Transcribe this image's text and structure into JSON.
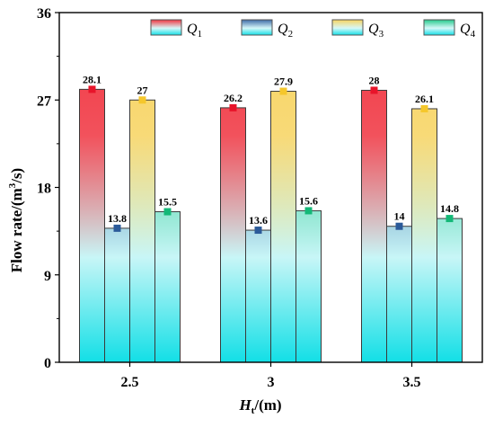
{
  "chart_data": {
    "type": "bar",
    "title": "",
    "xlabel": "Ht/(m)",
    "xlabel_main": "H",
    "xlabel_sub": "t",
    "xlabel_rest": "/(m)",
    "ylabel": "Flow rate/(m3/s)",
    "ylabel_main": "Flow rate/(m",
    "ylabel_sup": "3",
    "ylabel_rest": "/s)",
    "categories": [
      "2.5",
      "3",
      "3.5"
    ],
    "ylim": [
      0,
      36
    ],
    "yticks": [
      0,
      9,
      18,
      27,
      36
    ],
    "ytick_labels": [
      "0",
      "9",
      "18",
      "27",
      "36"
    ],
    "grid": false,
    "legend_position": "top",
    "series": [
      {
        "name": "Q1",
        "name_main": "Q",
        "name_sub": "1",
        "values": [
          28.1,
          26.2,
          28
        ],
        "value_labels": [
          "28.1",
          "26.2",
          "28"
        ],
        "top_color": "#f0333f",
        "bottom_color": "#12dfe6",
        "marker_color": "#e8142a"
      },
      {
        "name": "Q2",
        "name_main": "Q",
        "name_sub": "2",
        "values": [
          13.8,
          13.6,
          14
        ],
        "value_labels": [
          "13.8",
          "13.6",
          "14"
        ],
        "top_color": "#3d6aa6",
        "bottom_color": "#12dfe6",
        "marker_color": "#2b5a99"
      },
      {
        "name": "Q3",
        "name_main": "Q",
        "name_sub": "3",
        "values": [
          27,
          27.9,
          26.1
        ],
        "value_labels": [
          "27",
          "27.9",
          "26.1"
        ],
        "top_color": "#f7d35f",
        "bottom_color": "#12dfe6",
        "marker_color": "#f5c72b"
      },
      {
        "name": "Q4",
        "name_main": "Q",
        "name_sub": "4",
        "values": [
          15.5,
          15.6,
          14.8
        ],
        "value_labels": [
          "15.5",
          "15.6",
          "14.8"
        ],
        "top_color": "#25c98c",
        "bottom_color": "#12dfe6",
        "marker_color": "#13b877"
      }
    ]
  }
}
